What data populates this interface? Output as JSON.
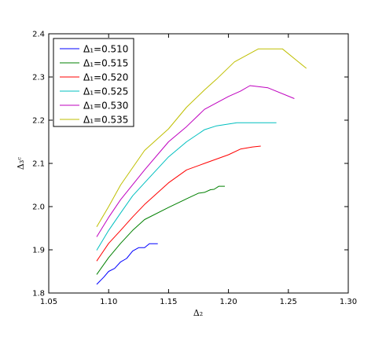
{
  "chart_data": {
    "type": "line",
    "xlabel": "Δ₂",
    "ylabel": "Δ₃ᶜ",
    "xlim": [
      1.05,
      1.3
    ],
    "ylim": [
      1.8,
      2.4
    ],
    "xticks": [
      "1.05",
      "1.10",
      "1.15",
      "1.20",
      "1.25",
      "1.30"
    ],
    "yticks": [
      "1.8",
      "1.9",
      "2.0",
      "2.1",
      "2.2",
      "2.3",
      "2.4"
    ],
    "grid": false,
    "legend_position": "top-left",
    "series": [
      {
        "name": "Δ₁=0.510",
        "color": "#0000ff",
        "points": [
          [
            1.09,
            1.82
          ],
          [
            1.096,
            1.837
          ],
          [
            1.1,
            1.85
          ],
          [
            1.105,
            1.857
          ],
          [
            1.11,
            1.872
          ],
          [
            1.115,
            1.88
          ],
          [
            1.12,
            1.897
          ],
          [
            1.125,
            1.905
          ],
          [
            1.13,
            1.905
          ],
          [
            1.134,
            1.914
          ],
          [
            1.141,
            1.914
          ]
        ]
      },
      {
        "name": "Δ₁=0.515",
        "color": "#008000",
        "points": [
          [
            1.09,
            1.843
          ],
          [
            1.1,
            1.882
          ],
          [
            1.11,
            1.915
          ],
          [
            1.12,
            1.945
          ],
          [
            1.13,
            1.97
          ],
          [
            1.15,
            1.998
          ],
          [
            1.165,
            2.018
          ],
          [
            1.175,
            2.031
          ],
          [
            1.18,
            2.033
          ],
          [
            1.185,
            2.039
          ],
          [
            1.188,
            2.04
          ],
          [
            1.192,
            2.047
          ],
          [
            1.197,
            2.047
          ]
        ]
      },
      {
        "name": "Δ₁=0.520",
        "color": "#ff0000",
        "points": [
          [
            1.09,
            1.874
          ],
          [
            1.1,
            1.915
          ],
          [
            1.11,
            1.945
          ],
          [
            1.12,
            1.976
          ],
          [
            1.13,
            2.005
          ],
          [
            1.15,
            2.055
          ],
          [
            1.165,
            2.085
          ],
          [
            1.18,
            2.1
          ],
          [
            1.2,
            2.12
          ],
          [
            1.21,
            2.133
          ],
          [
            1.22,
            2.138
          ],
          [
            1.227,
            2.14
          ]
        ]
      },
      {
        "name": "Δ₁=0.525",
        "color": "#00bfbf",
        "points": [
          [
            1.09,
            1.899
          ],
          [
            1.1,
            1.945
          ],
          [
            1.11,
            1.985
          ],
          [
            1.12,
            2.025
          ],
          [
            1.13,
            2.055
          ],
          [
            1.15,
            2.115
          ],
          [
            1.165,
            2.15
          ],
          [
            1.18,
            2.178
          ],
          [
            1.19,
            2.187
          ],
          [
            1.207,
            2.194
          ],
          [
            1.24,
            2.194
          ]
        ]
      },
      {
        "name": "Δ₁=0.530",
        "color": "#bf00bf",
        "points": [
          [
            1.09,
            1.93
          ],
          [
            1.1,
            1.975
          ],
          [
            1.11,
            2.016
          ],
          [
            1.13,
            2.085
          ],
          [
            1.15,
            2.15
          ],
          [
            1.165,
            2.185
          ],
          [
            1.18,
            2.225
          ],
          [
            1.2,
            2.255
          ],
          [
            1.21,
            2.267
          ],
          [
            1.218,
            2.28
          ],
          [
            1.233,
            2.275
          ],
          [
            1.255,
            2.25
          ]
        ]
      },
      {
        "name": "Δ₁=0.535",
        "color": "#bfbf00",
        "points": [
          [
            1.09,
            1.953
          ],
          [
            1.1,
            2.0
          ],
          [
            1.11,
            2.05
          ],
          [
            1.13,
            2.13
          ],
          [
            1.15,
            2.18
          ],
          [
            1.165,
            2.23
          ],
          [
            1.18,
            2.27
          ],
          [
            1.19,
            2.295
          ],
          [
            1.205,
            2.335
          ],
          [
            1.225,
            2.365
          ],
          [
            1.245,
            2.365
          ],
          [
            1.265,
            2.32
          ]
        ]
      }
    ]
  }
}
